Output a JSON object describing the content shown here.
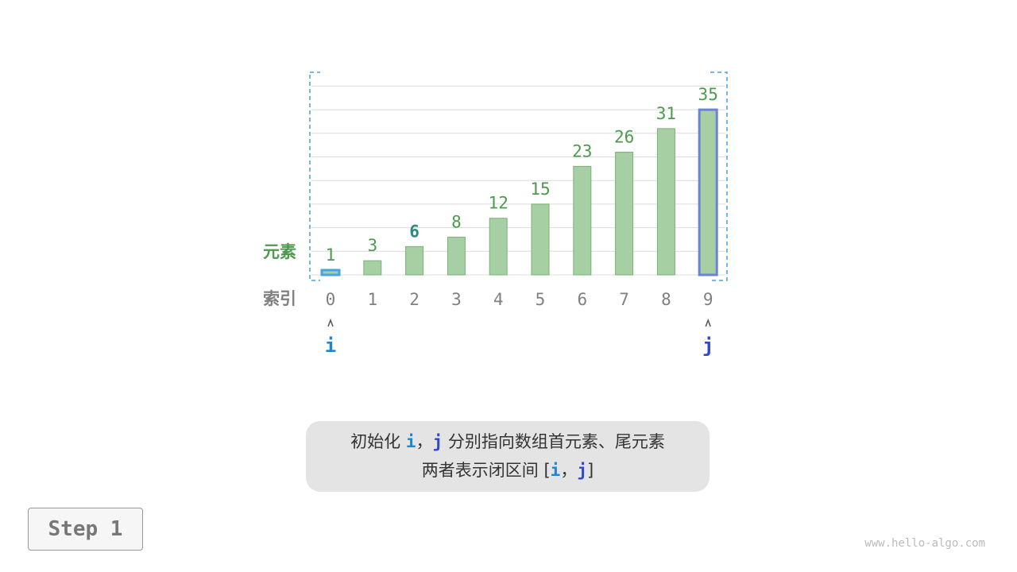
{
  "labels": {
    "elements": "元素",
    "indices": "索引"
  },
  "chart_data": {
    "type": "bar",
    "categories": [
      "0",
      "1",
      "2",
      "3",
      "4",
      "5",
      "6",
      "7",
      "8",
      "9"
    ],
    "values": [
      1,
      3,
      6,
      8,
      12,
      15,
      23,
      26,
      31,
      35
    ],
    "ylim": [
      0,
      40
    ],
    "grid": true,
    "target_value": 6,
    "pointers": [
      {
        "name": "i",
        "index": 0
      },
      {
        "name": "j",
        "index": 9
      }
    ]
  },
  "colors": {
    "bar": "#a6cfa3",
    "bar_border": "#79b176",
    "value_label": "#4c9a4c",
    "target_label": "#2d8a80",
    "i": "#1f86d0",
    "j": "#2f49c9",
    "i_highlight": "#45a4e6",
    "j_highlight": "#6b82dd",
    "index_label": "#808080"
  },
  "caption": {
    "line1_prefix": "初始化 ",
    "i": "i",
    "comma": "，",
    "j": "j",
    "line1_suffix": " 分别指向数组首元素、尾元素",
    "line2_prefix": "两者表示闭区间 [",
    "line2_suffix": "]"
  },
  "step_label": "Step 1",
  "watermark": "www.hello-algo.com"
}
